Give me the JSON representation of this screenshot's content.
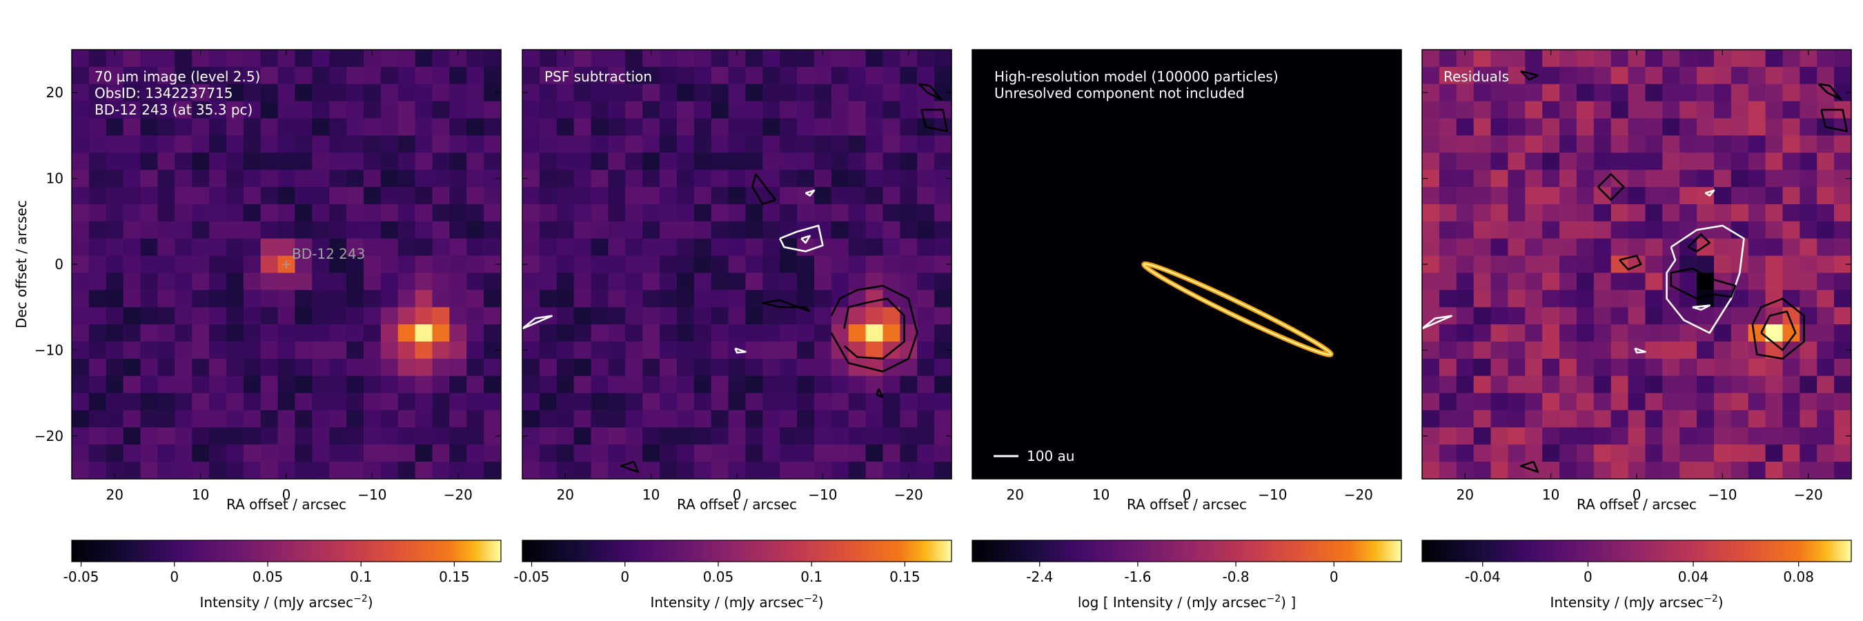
{
  "chart_data": [
    {
      "type": "heatmap",
      "annotation": [
        "70 µm image (level 2.5)",
        "ObsID: 1342237715",
        "BD-12 243 (at 35.3 pc)"
      ],
      "xlabel": "RA offset / arcsec",
      "ylabel": "Dec offset / arcsec",
      "xlim": [
        25,
        -25
      ],
      "ylim": [
        -25,
        25
      ],
      "xticks": [
        20,
        10,
        0,
        -10,
        -20
      ],
      "yticks": [
        20,
        10,
        0,
        -10,
        -20
      ],
      "xtick_labels": [
        "20",
        "10",
        "0",
        "−10",
        "−20"
      ],
      "ytick_labels": [
        "20",
        "10",
        "0",
        "−10",
        "−20"
      ],
      "source_marker": {
        "label": "BD-12   243",
        "x": 0,
        "y": 0
      },
      "sources": [
        {
          "x": 1,
          "y": 0,
          "peak": 0.13,
          "sigma": 1.8
        },
        {
          "x": -16,
          "y": -8,
          "peak": 0.16,
          "sigma": 2.8
        }
      ],
      "colorbar": {
        "label": "Intensity / (mJy arcsec",
        "label_sup": "−2",
        "label_tail": ")",
        "min": -0.055,
        "max": 0.175,
        "ticks": [
          -0.05,
          0,
          0.05,
          0.1,
          0.15
        ],
        "tick_labels": [
          "-0.05",
          "0",
          "0.05",
          "0.1",
          "0.15"
        ]
      },
      "colormap": "inferno"
    },
    {
      "type": "heatmap",
      "annotation": [
        "PSF subtraction"
      ],
      "xlabel": "RA offset / arcsec",
      "xlim": [
        25,
        -25
      ],
      "ylim": [
        -25,
        25
      ],
      "xticks": [
        20,
        10,
        0,
        -10,
        -20
      ],
      "xtick_labels": [
        "20",
        "10",
        "0",
        "−10",
        "−20"
      ],
      "sources": [
        {
          "x": -16,
          "y": -8,
          "peak": 0.16,
          "sigma": 2.8
        }
      ],
      "contours": [
        {
          "color": "black",
          "x": [
            -11,
            -12,
            -14,
            -17,
            -20,
            -21,
            -20,
            -17,
            -13,
            -11
          ],
          "y": [
            -6,
            -4,
            -3,
            -2.5,
            -4,
            -8,
            -11,
            -12.5,
            -11.5,
            -8
          ]
        },
        {
          "color": "black",
          "x": [
            -12.5,
            -13,
            -15,
            -17.5,
            -19.5,
            -19.5,
            -17,
            -14,
            -12.5
          ],
          "y": [
            -7.5,
            -5,
            -4.5,
            -4,
            -6,
            -9,
            -11,
            -10.8,
            -9.5
          ]
        },
        {
          "color": "black",
          "x": [
            -8.5,
            -8,
            -5,
            -3,
            -5,
            -8.5
          ],
          "y": [
            -5.5,
            -5,
            -5,
            -4.5,
            -4.2,
            -5.5
          ]
        },
        {
          "color": "black",
          "x": [
            -4.5,
            -3,
            -1.8,
            -2.2,
            -4.5
          ],
          "y": [
            7.5,
            7,
            9,
            10.5,
            7.5
          ]
        },
        {
          "color": "black",
          "x": [
            -21.5,
            -22,
            -24.5,
            -24,
            -21.5
          ],
          "y": [
            18,
            16,
            15.5,
            18,
            18
          ]
        },
        {
          "color": "black",
          "x": [
            -21.2,
            -22.2,
            -23.8,
            -22.5,
            -21.2
          ],
          "y": [
            21,
            20,
            19.2,
            20.8,
            21
          ]
        },
        {
          "color": "black",
          "x": [
            -16.5,
            -17,
            -16.3,
            -16.5
          ],
          "y": [
            -14.5,
            -15.5,
            -15.2,
            -14.5
          ]
        },
        {
          "color": "black",
          "x": [
            12,
            13.5,
            11.5,
            12
          ],
          "y": [
            -23,
            -23.5,
            -24.2,
            -23
          ]
        },
        {
          "color": "white",
          "x": [
            -5,
            -7,
            -9.5,
            -10,
            -8,
            -5.5,
            -5
          ],
          "y": [
            3,
            3.8,
            4.5,
            2.2,
            1.5,
            2,
            3
          ]
        },
        {
          "color": "white",
          "x": [
            -7.5,
            -8.5,
            -8,
            -7.5
          ],
          "y": [
            3,
            3.3,
            2.5,
            3
          ]
        },
        {
          "color": "white",
          "x": [
            21.5,
            23.5,
            25,
            21.5
          ],
          "y": [
            -6,
            -6.3,
            -7.5,
            -6
          ]
        },
        {
          "color": "white",
          "x": [
            -8,
            -9,
            -8.5,
            -8
          ],
          "y": [
            8.3,
            8.6,
            8,
            8.3
          ]
        },
        {
          "color": "white",
          "x": [
            0.2,
            -1,
            0,
            0.2
          ],
          "y": [
            -9.8,
            -10.2,
            -10.3,
            -9.8
          ]
        }
      ],
      "colorbar": {
        "label": "Intensity / (mJy arcsec",
        "label_sup": "−2",
        "label_tail": ")",
        "min": -0.055,
        "max": 0.175,
        "ticks": [
          -0.05,
          0,
          0.05,
          0.1,
          0.15
        ],
        "tick_labels": [
          "-0.05",
          "0",
          "0.05",
          "0.1",
          "0.15"
        ]
      },
      "colormap": "inferno"
    },
    {
      "type": "heatmap",
      "annotation": [
        "High-resolution model (100000 particles)",
        "Unresolved component not included"
      ],
      "xlabel": "RA offset / arcsec",
      "xlim": [
        25,
        -25
      ],
      "ylim": [
        -25,
        25
      ],
      "xticks": [
        20,
        10,
        0,
        -10,
        -20
      ],
      "xtick_labels": [
        "20",
        "10",
        "0",
        "−10",
        "−20"
      ],
      "scale_bar": {
        "label": "100 au"
      },
      "disk": {
        "x_start": 5,
        "y_start": 0,
        "x_end": -16.8,
        "y_end": -10.5
      },
      "colorbar": {
        "label": "log [ Intensity / (mJy arcsec",
        "label_sup": "−2",
        "label_tail": ") ]",
        "min": -2.95,
        "max": 0.55,
        "ticks": [
          -2.4,
          -1.6,
          -0.8,
          0
        ],
        "tick_labels": [
          "-2.4",
          "-1.6",
          "-0.8",
          "0"
        ]
      },
      "colormap": "inferno"
    },
    {
      "type": "heatmap",
      "annotation": [
        "Residuals"
      ],
      "xlabel": "RA offset / arcsec",
      "xlim": [
        25,
        -25
      ],
      "ylim": [
        -25,
        25
      ],
      "xticks": [
        20,
        10,
        0,
        -10,
        -20
      ],
      "xtick_labels": [
        "20",
        "10",
        "0",
        "−10",
        "−20"
      ],
      "sources": [
        {
          "x": -16,
          "y": -8,
          "peak": 0.09,
          "sigma": 1.8
        },
        {
          "x": 2,
          "y": 0,
          "peak": 0.07,
          "sigma": 0.9
        }
      ],
      "sinks": [
        {
          "x": -8,
          "y": -2.5,
          "depth": 0.055,
          "sigma": 1.5
        }
      ],
      "contours": [
        {
          "color": "black",
          "x": [
            -13.5,
            -14.5,
            -17,
            -19.5,
            -19.5,
            -17,
            -14,
            -13.5
          ],
          "y": [
            -7,
            -5,
            -4,
            -6,
            -9,
            -11,
            -10.5,
            -7
          ]
        },
        {
          "color": "black",
          "x": [
            -14.5,
            -15.5,
            -17.5,
            -18.5,
            -17,
            -14.5
          ],
          "y": [
            -8,
            -6,
            -5.5,
            -8,
            -10,
            -8
          ]
        },
        {
          "color": "white",
          "x": [
            -4,
            -7,
            -10,
            -12.5,
            -12,
            -11,
            -8.5,
            -5.5,
            -3.5,
            -3.5,
            -4.5,
            -4
          ],
          "y": [
            2,
            4,
            4.5,
            3,
            -1,
            -4,
            -8,
            -6.5,
            -4,
            -1,
            0.5,
            2
          ]
        },
        {
          "color": "black",
          "x": [
            -4,
            -6.5,
            -9,
            -11.5,
            -11,
            -9,
            -7,
            -4,
            -4
          ],
          "y": [
            -1,
            -0.5,
            -1.8,
            -2.5,
            -3.8,
            -3.5,
            -4,
            -2.5,
            -1
          ]
        },
        {
          "color": "black",
          "x": [
            -6,
            -7.5,
            -8.5,
            -7,
            -6
          ],
          "y": [
            2,
            3.5,
            2.5,
            1.5,
            2
          ]
        },
        {
          "color": "black",
          "x": [
            2,
            0,
            -0.5,
            1,
            2
          ],
          "y": [
            0.5,
            1,
            0,
            -0.6,
            0.5
          ]
        },
        {
          "color": "black",
          "x": [
            4.5,
            3,
            1.5,
            3,
            4.5
          ],
          "y": [
            9,
            7.5,
            9,
            10.5,
            9
          ]
        },
        {
          "color": "black",
          "x": [
            -21.5,
            -22,
            -24.5,
            -24,
            -21.5
          ],
          "y": [
            18,
            16,
            15.5,
            18,
            18
          ]
        },
        {
          "color": "black",
          "x": [
            -21.2,
            -22.2,
            -23.8,
            -22.5,
            -21.2
          ],
          "y": [
            21,
            20,
            19.2,
            20.8,
            21
          ]
        },
        {
          "color": "black",
          "x": [
            12,
            13.5,
            11.5,
            12
          ],
          "y": [
            -23,
            -23.5,
            -24.2,
            -23
          ]
        },
        {
          "color": "black",
          "x": [
            13.5,
            12.5,
            11.5,
            13.5
          ],
          "y": [
            22.5,
            21.5,
            22,
            22.5
          ]
        },
        {
          "color": "white",
          "x": [
            21.5,
            23.5,
            25,
            21.5
          ],
          "y": [
            -6,
            -6.3,
            -7.5,
            -6
          ]
        },
        {
          "color": "white",
          "x": [
            -8,
            -9,
            -8.5,
            -8
          ],
          "y": [
            8.3,
            8.6,
            8,
            8.3
          ]
        },
        {
          "color": "white",
          "x": [
            0.2,
            -1,
            0,
            0.2
          ],
          "y": [
            -9.8,
            -10.2,
            -10.3,
            -9.8
          ]
        },
        {
          "color": "white",
          "x": [
            -6.5,
            -7.5,
            -8.5,
            -6.5
          ],
          "y": [
            -5,
            -5.3,
            -4.8,
            -5
          ]
        }
      ],
      "colorbar": {
        "label": "Intensity / (mJy arcsec",
        "label_sup": "−2",
        "label_tail": ")",
        "min": -0.063,
        "max": 0.1,
        "ticks": [
          -0.04,
          0,
          0.04,
          0.08
        ],
        "tick_labels": [
          "-0.04",
          "0",
          "0.04",
          "0.08"
        ]
      },
      "colormap": "inferno"
    }
  ]
}
